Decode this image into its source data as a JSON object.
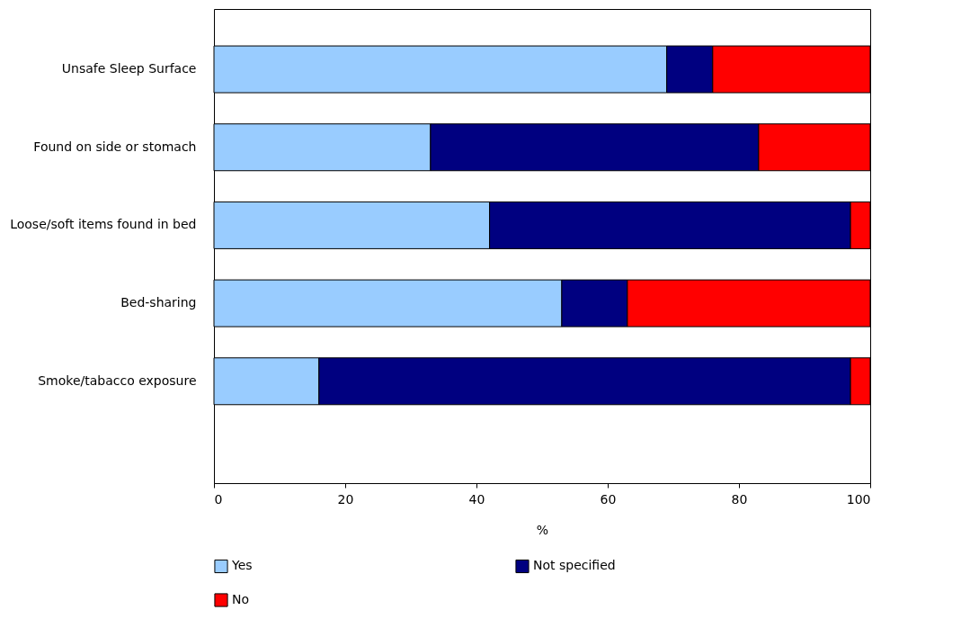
{
  "chart_data": {
    "type": "bar",
    "orientation": "horizontal",
    "stacked": true,
    "categories": [
      "Unsafe Sleep Surface",
      "Found on side or stomach",
      "Loose/soft items found in bed",
      "Bed-sharing",
      "Smoke/tabacco exposure"
    ],
    "series": [
      {
        "name": "Yes",
        "color": "#99ccff",
        "values": [
          69,
          33,
          42,
          53,
          16
        ]
      },
      {
        "name": "Not specified",
        "color": "#000080",
        "values": [
          7,
          50,
          55,
          10,
          81
        ]
      },
      {
        "name": "No",
        "color": "#ff0000",
        "values": [
          24,
          17,
          3,
          37,
          3
        ]
      }
    ],
    "xlabel": "%",
    "xlim": [
      0,
      100
    ],
    "xticks": [
      0,
      20,
      40,
      60,
      80,
      100
    ],
    "grid": false,
    "legend": "bottom"
  }
}
